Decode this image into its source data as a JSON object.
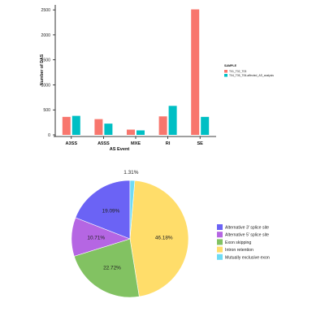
{
  "chart_data": [
    {
      "type": "bar",
      "title": "",
      "xlabel": "AS Event",
      "ylabel": "Number of DAS",
      "ylim": [
        0,
        2600
      ],
      "yticks": [
        0,
        500,
        1000,
        1500,
        2000,
        2500
      ],
      "grid": false,
      "legend_placement": "right",
      "legend_title": "SAMPLE",
      "categories": [
        "A3SS",
        "A5SS",
        "MXE",
        "RI",
        "SE"
      ],
      "series": [
        {
          "name": "T01_T02_T03",
          "color": "#F8766D",
          "values": [
            360,
            315,
            105,
            370,
            2510
          ]
        },
        {
          "name": "T04_T05_T06-affected_AS_analysis",
          "color": "#00BFC4",
          "values": [
            380,
            225,
            90,
            580,
            360
          ]
        }
      ]
    },
    {
      "type": "pie",
      "title": "",
      "legend_placement": "right",
      "slices": [
        {
          "label": "Alternative 3' splice site",
          "value": 19.09,
          "display": "19.09%",
          "color": "#6B63F5"
        },
        {
          "label": "Alternative 5' splice site",
          "value": 10.71,
          "display": "10.71%",
          "color": "#B566E3"
        },
        {
          "label": "Exon skipping",
          "value": 22.72,
          "display": "22.72%",
          "color": "#82C262"
        },
        {
          "label": "Intron retention",
          "value": 46.18,
          "display": "46.18%",
          "color": "#FFDD6A"
        },
        {
          "label": "Mutually exclusive exon",
          "value": 1.31,
          "display": "1.31%",
          "color": "#6EDCF5"
        }
      ]
    }
  ]
}
